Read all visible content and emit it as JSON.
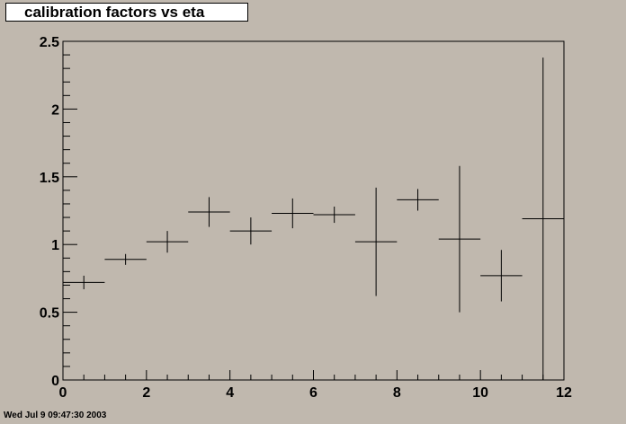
{
  "header": {
    "title": "calibration factors vs eta"
  },
  "footer": {
    "timestamp": "Wed Jul  9 09:47:30 2003"
  },
  "colors": {
    "background": "#c0b8ae",
    "frame": "#000000",
    "title_box": "#ffffff"
  },
  "chart_data": {
    "type": "scatter",
    "title": "calibration factors vs eta",
    "xlabel": "",
    "ylabel": "",
    "xlim": [
      0,
      12
    ],
    "ylim": [
      0,
      2.5
    ],
    "x_ticks": [
      "0",
      "2",
      "4",
      "6",
      "8",
      "10",
      "12"
    ],
    "y_ticks": [
      "0",
      "0.5",
      "1",
      "1.5",
      "2",
      "2.5"
    ],
    "grid": false,
    "points": [
      {
        "x": 0.5,
        "y": 0.72,
        "xerr": 0.5,
        "yerr": 0.05
      },
      {
        "x": 1.5,
        "y": 0.89,
        "xerr": 0.5,
        "yerr": 0.04
      },
      {
        "x": 2.5,
        "y": 1.02,
        "xerr": 0.5,
        "yerr": 0.08
      },
      {
        "x": 3.5,
        "y": 1.24,
        "xerr": 0.5,
        "yerr": 0.11
      },
      {
        "x": 4.5,
        "y": 1.1,
        "xerr": 0.5,
        "yerr": 0.1
      },
      {
        "x": 5.5,
        "y": 1.23,
        "xerr": 0.5,
        "yerr": 0.11
      },
      {
        "x": 6.5,
        "y": 1.22,
        "xerr": 0.5,
        "yerr": 0.06
      },
      {
        "x": 7.5,
        "y": 1.02,
        "xerr": 0.5,
        "yerr": 0.4
      },
      {
        "x": 8.5,
        "y": 1.33,
        "xerr": 0.5,
        "yerr": 0.08
      },
      {
        "x": 9.5,
        "y": 1.04,
        "xerr": 0.5,
        "yerr": 0.54
      },
      {
        "x": 10.5,
        "y": 0.77,
        "xerr": 0.5,
        "yerr": 0.19
      },
      {
        "x": 11.5,
        "y": 1.19,
        "xerr": 0.5,
        "yerr": 1.19
      }
    ]
  }
}
